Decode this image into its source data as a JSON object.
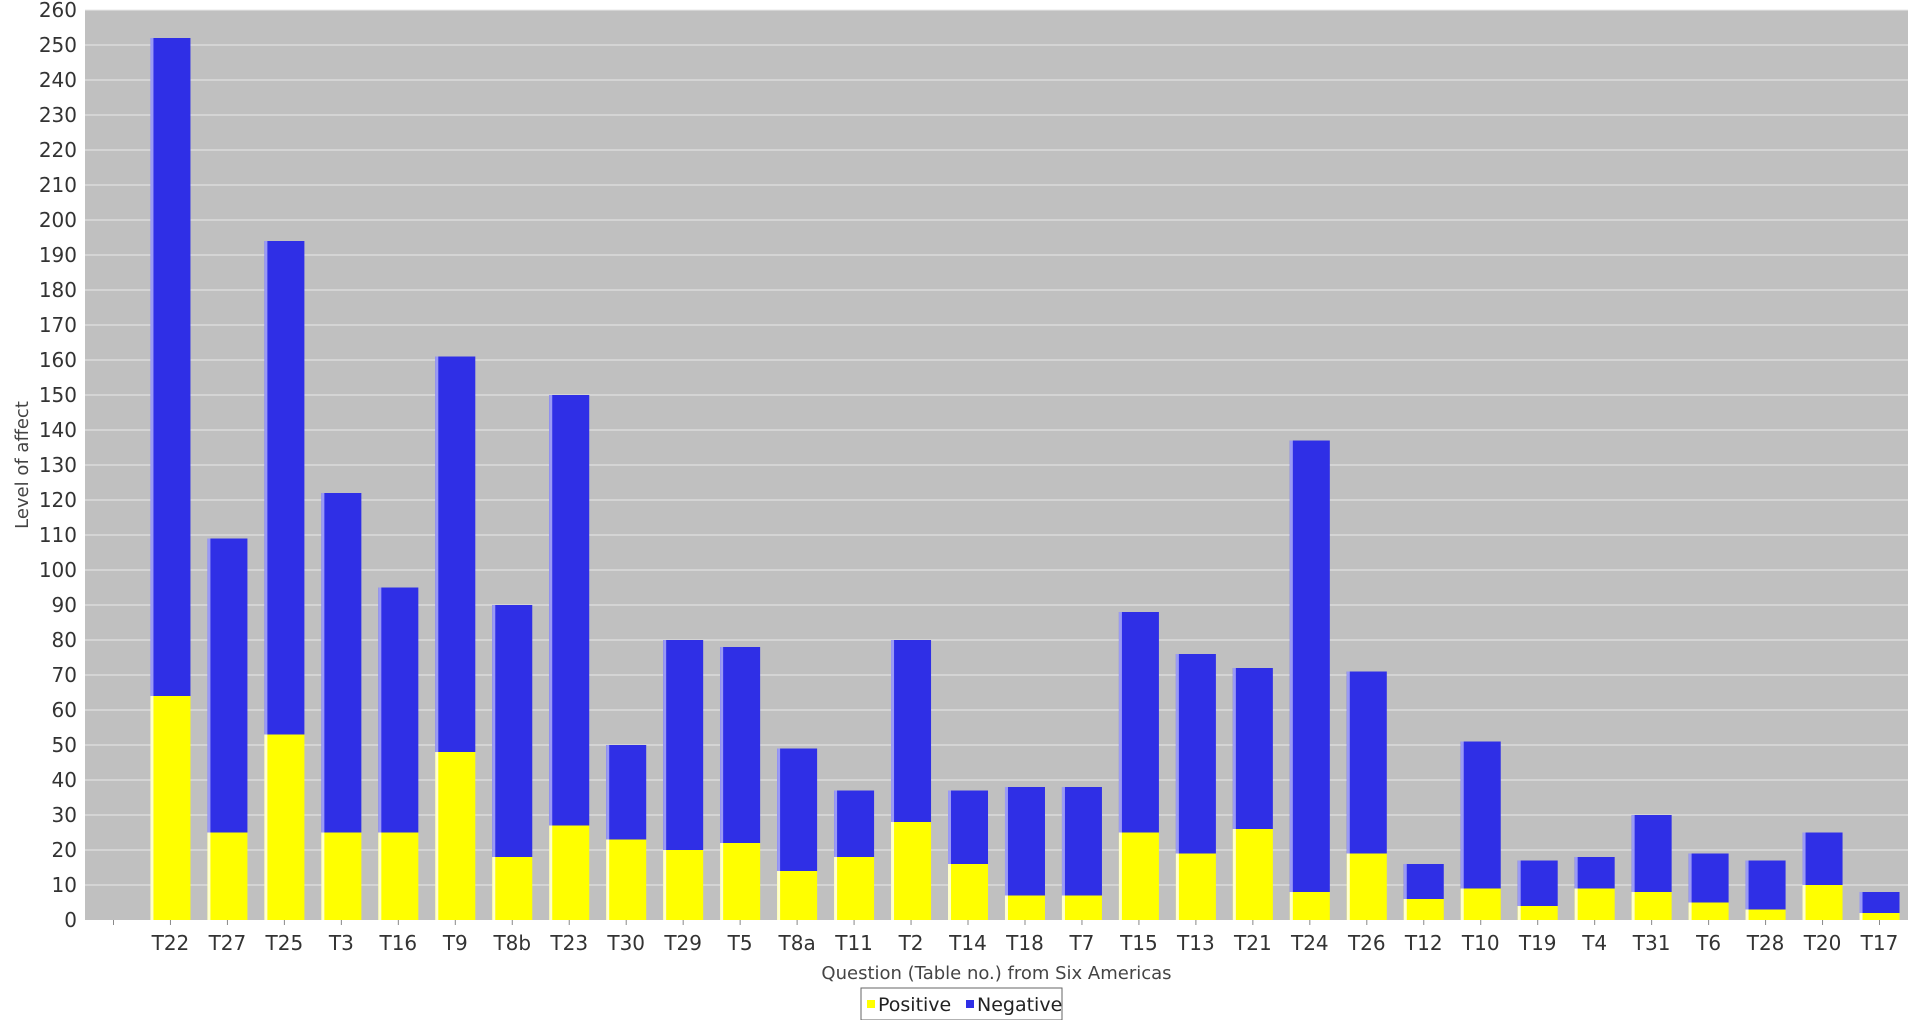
{
  "chart_data": {
    "type": "bar",
    "stacked": true,
    "title": "",
    "xlabel": "Question (Table no.) from Six Americas",
    "ylabel": "Level of affect",
    "ylim": [
      0,
      260
    ],
    "ytick_step": 10,
    "grid": true,
    "legend_position": "bottom-center",
    "categories": [
      "T22",
      "T27",
      "T25",
      "T3",
      "T16",
      "T9",
      "T8b",
      "T23",
      "T30",
      "T29",
      "T5",
      "T8a",
      "T11",
      "T2",
      "T14",
      "T18",
      "T7",
      "T15",
      "T13",
      "T21",
      "T24",
      "T26",
      "T12",
      "T10",
      "T19",
      "T4",
      "T31",
      "T6",
      "T28",
      "T20",
      "T17"
    ],
    "series": [
      {
        "name": "Positive",
        "color": "#ffff00",
        "values": [
          64,
          25,
          53,
          25,
          25,
          48,
          18,
          27,
          23,
          20,
          22,
          14,
          18,
          28,
          16,
          7,
          7,
          25,
          19,
          26,
          8,
          19,
          6,
          9,
          4,
          9,
          8,
          5,
          3,
          10,
          2
        ]
      },
      {
        "name": "Negative",
        "color": "#2f2fe6",
        "values": [
          188,
          84,
          141,
          97,
          70,
          113,
          72,
          123,
          27,
          60,
          56,
          35,
          19,
          52,
          21,
          31,
          31,
          63,
          57,
          46,
          129,
          52,
          10,
          42,
          13,
          9,
          22,
          14,
          14,
          15,
          6
        ]
      }
    ],
    "colors": {
      "plot_background": "#c0c0c0",
      "grid": "#e8e8e8",
      "positive": "#ffff00",
      "negative": "#2f2fe6"
    }
  }
}
